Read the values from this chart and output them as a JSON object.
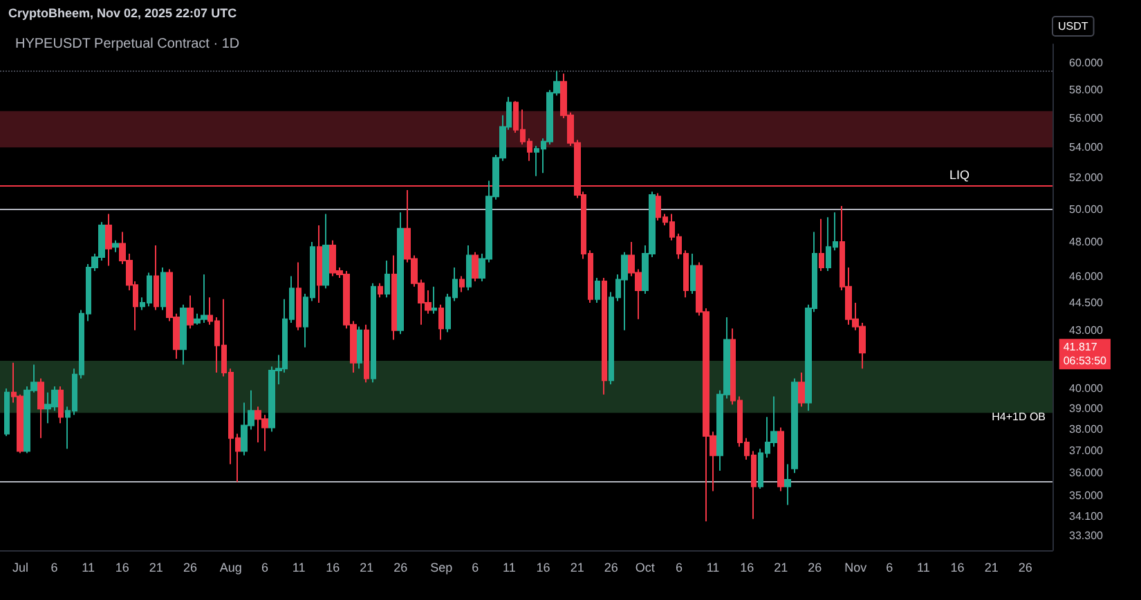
{
  "chart_data": {
    "type": "candlestick",
    "title": "HYPEUSDT Perpetual Contract · 1D",
    "ylabel": "USDT",
    "annotations": [
      "CryptoBheem, Nov 02, 2025 22:07 UTC",
      "41.817\n06:53:50"
    ],
    "x": [
      "2025-06-29",
      "2025-06-30",
      "2025-07-01",
      "2025-07-02",
      "2025-07-03",
      "2025-07-04",
      "2025-07-05",
      "2025-07-06",
      "2025-07-07",
      "2025-07-08",
      "2025-07-09",
      "2025-07-10",
      "2025-07-11",
      "2025-07-12",
      "2025-07-13",
      "2025-07-14",
      "2025-07-15",
      "2025-07-16",
      "2025-07-17",
      "2025-07-18",
      "2025-07-19",
      "2025-07-20",
      "2025-07-21",
      "2025-07-22",
      "2025-07-23",
      "2025-07-24",
      "2025-07-25",
      "2025-07-26",
      "2025-07-27",
      "2025-07-28",
      "2025-07-29",
      "2025-07-30",
      "2025-07-31",
      "2025-08-01",
      "2025-08-02",
      "2025-08-03",
      "2025-08-04",
      "2025-08-05",
      "2025-08-06",
      "2025-08-07",
      "2025-08-08",
      "2025-08-09",
      "2025-08-10",
      "2025-08-11",
      "2025-08-12",
      "2025-08-13",
      "2025-08-14",
      "2025-08-15",
      "2025-08-16",
      "2025-08-17",
      "2025-08-18",
      "2025-08-19",
      "2025-08-20",
      "2025-08-21",
      "2025-08-22",
      "2025-08-23",
      "2025-08-24",
      "2025-08-25",
      "2025-08-26",
      "2025-08-27",
      "2025-08-28",
      "2025-08-29",
      "2025-08-30",
      "2025-08-31",
      "2025-09-01",
      "2025-09-02",
      "2025-09-03",
      "2025-09-04",
      "2025-09-05",
      "2025-09-06",
      "2025-09-07",
      "2025-09-08",
      "2025-09-09",
      "2025-09-10",
      "2025-09-11",
      "2025-09-12",
      "2025-09-13",
      "2025-09-14",
      "2025-09-15",
      "2025-09-16",
      "2025-09-17",
      "2025-09-18",
      "2025-09-19",
      "2025-09-20",
      "2025-09-21",
      "2025-09-22",
      "2025-09-23",
      "2025-09-24",
      "2025-09-25",
      "2025-09-26",
      "2025-09-27",
      "2025-09-28",
      "2025-09-29",
      "2025-09-30",
      "2025-10-01",
      "2025-10-02",
      "2025-10-03",
      "2025-10-04",
      "2025-10-05",
      "2025-10-06",
      "2025-10-07",
      "2025-10-08",
      "2025-10-09",
      "2025-10-10",
      "2025-10-11",
      "2025-10-12",
      "2025-10-13",
      "2025-10-14",
      "2025-10-15",
      "2025-10-16",
      "2025-10-17",
      "2025-10-18",
      "2025-10-19",
      "2025-10-20",
      "2025-10-21",
      "2025-10-22",
      "2025-10-23",
      "2025-10-24",
      "2025-10-25",
      "2025-10-26",
      "2025-10-27",
      "2025-10-28",
      "2025-10-29",
      "2025-10-30",
      "2025-10-31",
      "2025-11-01",
      "2025-11-02"
    ],
    "ohlc": [
      [
        37.8,
        40.0,
        37.7,
        39.8
      ],
      [
        39.8,
        41.3,
        39.3,
        39.6
      ],
      [
        39.6,
        39.7,
        36.9,
        37.0
      ],
      [
        37.0,
        40.1,
        36.9,
        39.9
      ],
      [
        39.9,
        41.2,
        39.8,
        40.3
      ],
      [
        40.3,
        40.5,
        37.6,
        39.0
      ],
      [
        39.0,
        39.8,
        38.3,
        39.2
      ],
      [
        39.1,
        40.1,
        38.9,
        39.9
      ],
      [
        39.9,
        40.1,
        38.3,
        38.6
      ],
      [
        38.6,
        39.1,
        37.1,
        38.9
      ],
      [
        38.9,
        41.0,
        38.7,
        40.7
      ],
      [
        40.7,
        44.1,
        40.5,
        43.9
      ],
      [
        43.9,
        46.7,
        43.5,
        46.5
      ],
      [
        46.5,
        47.3,
        46.3,
        47.1
      ],
      [
        47.1,
        49.2,
        46.9,
        49.0
      ],
      [
        49.0,
        49.7,
        46.6,
        47.6
      ],
      [
        47.7,
        48.1,
        47.4,
        47.9
      ],
      [
        47.9,
        48.6,
        46.7,
        46.9
      ],
      [
        46.9,
        47.3,
        45.2,
        45.5
      ],
      [
        45.5,
        45.7,
        43.0,
        44.3
      ],
      [
        44.3,
        44.8,
        44.1,
        44.5
      ],
      [
        44.5,
        46.2,
        44.3,
        46.0
      ],
      [
        46.0,
        47.8,
        44.1,
        44.3
      ],
      [
        44.3,
        46.5,
        44.1,
        46.2
      ],
      [
        46.2,
        46.4,
        43.5,
        43.7
      ],
      [
        43.7,
        43.9,
        41.5,
        42.0
      ],
      [
        42.0,
        44.4,
        41.2,
        44.2
      ],
      [
        44.2,
        44.9,
        43.1,
        43.3
      ],
      [
        43.4,
        43.9,
        43.3,
        43.6
      ],
      [
        43.6,
        46.1,
        43.4,
        43.8
      ],
      [
        43.8,
        44.8,
        43.3,
        43.5
      ],
      [
        43.5,
        43.7,
        40.8,
        42.2
      ],
      [
        42.2,
        44.7,
        40.6,
        40.8
      ],
      [
        40.8,
        41.0,
        36.4,
        37.6
      ],
      [
        37.6,
        37.8,
        35.6,
        37.0
      ],
      [
        37.0,
        39.3,
        36.8,
        38.2
      ],
      [
        38.2,
        39.9,
        38.0,
        38.9
      ],
      [
        38.9,
        39.1,
        37.4,
        38.5
      ],
      [
        38.5,
        38.7,
        37.0,
        38.1
      ],
      [
        38.1,
        41.1,
        37.9,
        40.9
      ],
      [
        40.9,
        41.7,
        40.2,
        41.0
      ],
      [
        41.0,
        44.7,
        40.8,
        43.6
      ],
      [
        43.6,
        46.0,
        43.4,
        45.3
      ],
      [
        45.3,
        46.8,
        43.0,
        43.2
      ],
      [
        43.2,
        45.0,
        42.1,
        44.8
      ],
      [
        44.8,
        48.0,
        44.6,
        47.7
      ],
      [
        47.7,
        49.0,
        44.5,
        45.5
      ],
      [
        45.5,
        49.7,
        45.3,
        47.8
      ],
      [
        47.8,
        48.1,
        46.0,
        46.2
      ],
      [
        46.3,
        46.5,
        45.9,
        46.1
      ],
      [
        46.1,
        46.3,
        43.1,
        43.3
      ],
      [
        43.3,
        43.5,
        40.8,
        41.3
      ],
      [
        41.3,
        43.2,
        41.0,
        43.0
      ],
      [
        43.0,
        43.3,
        40.3,
        40.5
      ],
      [
        40.5,
        45.6,
        40.3,
        45.4
      ],
      [
        45.4,
        45.6,
        44.8,
        45.0
      ],
      [
        45.0,
        46.9,
        44.8,
        46.1
      ],
      [
        46.1,
        47.2,
        42.5,
        43.0
      ],
      [
        43.0,
        49.8,
        42.8,
        48.8
      ],
      [
        48.8,
        51.2,
        46.8,
        47.0
      ],
      [
        47.0,
        47.2,
        45.4,
        45.6
      ],
      [
        45.6,
        45.8,
        43.3,
        44.5
      ],
      [
        44.5,
        45.2,
        43.9,
        44.1
      ],
      [
        44.1,
        45.4,
        43.9,
        44.2
      ],
      [
        44.2,
        44.4,
        42.5,
        43.1
      ],
      [
        43.1,
        45.0,
        42.9,
        44.8
      ],
      [
        44.8,
        46.5,
        44.6,
        45.8
      ],
      [
        45.8,
        46.0,
        45.1,
        45.4
      ],
      [
        45.4,
        47.8,
        45.2,
        47.2
      ],
      [
        47.2,
        47.4,
        45.7,
        45.9
      ],
      [
        45.9,
        47.3,
        45.7,
        47.0
      ],
      [
        47.0,
        51.8,
        46.8,
        50.8
      ],
      [
        50.8,
        53.5,
        50.6,
        53.3
      ],
      [
        53.3,
        56.2,
        53.1,
        55.4
      ],
      [
        55.4,
        57.5,
        55.2,
        57.1
      ],
      [
        57.1,
        57.2,
        55.0,
        55.2
      ],
      [
        55.2,
        56.6,
        54.2,
        54.4
      ],
      [
        54.4,
        54.6,
        53.1,
        53.7
      ],
      [
        53.7,
        54.1,
        52.1,
        53.9
      ],
      [
        53.9,
        54.6,
        52.3,
        54.4
      ],
      [
        54.4,
        58.0,
        54.2,
        57.8
      ],
      [
        57.8,
        59.4,
        57.6,
        58.6
      ],
      [
        58.6,
        59.2,
        56.0,
        56.2
      ],
      [
        56.2,
        56.4,
        54.1,
        54.3
      ],
      [
        54.3,
        54.5,
        50.7,
        50.9
      ],
      [
        50.9,
        51.1,
        47.0,
        47.3
      ],
      [
        47.3,
        47.5,
        44.5,
        44.7
      ],
      [
        44.7,
        45.9,
        44.5,
        45.7
      ],
      [
        45.7,
        45.9,
        39.7,
        40.4
      ],
      [
        40.4,
        45.1,
        40.2,
        44.8
      ],
      [
        44.8,
        46.1,
        44.6,
        45.8
      ],
      [
        45.8,
        47.4,
        43.0,
        47.2
      ],
      [
        47.2,
        48.0,
        46.0,
        46.2
      ],
      [
        46.2,
        46.4,
        43.6,
        45.2
      ],
      [
        45.2,
        47.8,
        45.0,
        47.3
      ],
      [
        47.3,
        51.1,
        47.1,
        50.9
      ],
      [
        50.8,
        51.0,
        49.3,
        49.5
      ],
      [
        49.5,
        49.7,
        49.0,
        49.2
      ],
      [
        49.2,
        49.7,
        48.1,
        48.3
      ],
      [
        48.3,
        48.5,
        47.0,
        47.3
      ],
      [
        47.3,
        47.5,
        44.8,
        45.2
      ],
      [
        45.2,
        47.3,
        45.0,
        46.6
      ],
      [
        46.6,
        46.8,
        43.8,
        44.0
      ],
      [
        44.0,
        44.2,
        33.9,
        37.7
      ],
      [
        37.7,
        37.9,
        35.2,
        36.8
      ],
      [
        36.8,
        39.9,
        36.1,
        39.7
      ],
      [
        39.7,
        43.7,
        39.5,
        42.5
      ],
      [
        42.5,
        43.1,
        39.2,
        39.4
      ],
      [
        39.4,
        39.6,
        37.2,
        37.4
      ],
      [
        37.4,
        37.6,
        36.6,
        36.8
      ],
      [
        36.8,
        37.0,
        34.0,
        35.4
      ],
      [
        35.4,
        37.1,
        35.3,
        36.9
      ],
      [
        36.9,
        38.6,
        36.7,
        37.4
      ],
      [
        37.4,
        39.6,
        37.2,
        37.9
      ],
      [
        37.9,
        38.1,
        35.2,
        35.4
      ],
      [
        35.4,
        36.4,
        34.6,
        35.7
      ],
      [
        36.2,
        40.5,
        36.0,
        40.3
      ],
      [
        40.3,
        40.8,
        39.1,
        39.3
      ],
      [
        39.3,
        44.4,
        38.9,
        44.2
      ],
      [
        44.2,
        48.6,
        44.0,
        47.3
      ],
      [
        47.3,
        49.4,
        46.3,
        46.5
      ],
      [
        46.5,
        49.5,
        46.3,
        47.7
      ],
      [
        47.7,
        49.8,
        47.5,
        48.0
      ],
      [
        48.0,
        50.2,
        45.2,
        45.4
      ],
      [
        45.4,
        46.5,
        43.3,
        43.6
      ],
      [
        43.6,
        44.5,
        43.0,
        43.2
      ],
      [
        43.2,
        43.4,
        41.0,
        41.817
      ]
    ],
    "xlim": [
      "2025-06-28",
      "2025-11-30"
    ],
    "xticks": [
      {
        "value": "2025-07-01",
        "label": "Jul"
      },
      {
        "value": "2025-07-06",
        "label": "6"
      },
      {
        "value": "2025-07-11",
        "label": "11"
      },
      {
        "value": "2025-07-16",
        "label": "16"
      },
      {
        "value": "2025-07-21",
        "label": "21"
      },
      {
        "value": "2025-07-26",
        "label": "26"
      },
      {
        "value": "2025-08-01",
        "label": "Aug"
      },
      {
        "value": "2025-08-06",
        "label": "6"
      },
      {
        "value": "2025-08-11",
        "label": "11"
      },
      {
        "value": "2025-08-16",
        "label": "16"
      },
      {
        "value": "2025-08-21",
        "label": "21"
      },
      {
        "value": "2025-08-26",
        "label": "26"
      },
      {
        "value": "2025-09-01",
        "label": "Sep"
      },
      {
        "value": "2025-09-06",
        "label": "6"
      },
      {
        "value": "2025-09-11",
        "label": "11"
      },
      {
        "value": "2025-09-16",
        "label": "16"
      },
      {
        "value": "2025-09-21",
        "label": "21"
      },
      {
        "value": "2025-09-26",
        "label": "26"
      },
      {
        "value": "2025-10-01",
        "label": "Oct"
      },
      {
        "value": "2025-10-06",
        "label": "6"
      },
      {
        "value": "2025-10-11",
        "label": "11"
      },
      {
        "value": "2025-10-16",
        "label": "16"
      },
      {
        "value": "2025-10-21",
        "label": "21"
      },
      {
        "value": "2025-10-26",
        "label": "26"
      },
      {
        "value": "2025-11-01",
        "label": "Nov"
      },
      {
        "value": "2025-11-06",
        "label": "6"
      },
      {
        "value": "2025-11-11",
        "label": "11"
      },
      {
        "value": "2025-11-16",
        "label": "16"
      },
      {
        "value": "2025-11-21",
        "label": "21"
      },
      {
        "value": "2025-11-26",
        "label": "26"
      }
    ],
    "ylim": [
      32.7,
      61.4
    ],
    "log": true,
    "yticks": [
      {
        "value": 60,
        "label": "60.000"
      },
      {
        "value": 58,
        "label": "58.000"
      },
      {
        "value": 56,
        "label": "56.000"
      },
      {
        "value": 54,
        "label": "54.000"
      },
      {
        "value": 52,
        "label": "52.000"
      },
      {
        "value": 50,
        "label": "50.000"
      },
      {
        "value": 48,
        "label": "48.000"
      },
      {
        "value": 46,
        "label": "46.000"
      },
      {
        "value": 44.5,
        "label": "44.500"
      },
      {
        "value": 43,
        "label": "43.000"
      },
      {
        "value": 40,
        "label": "40.000"
      },
      {
        "value": 39,
        "label": "39.000"
      },
      {
        "value": 38,
        "label": "38.000"
      },
      {
        "value": 37,
        "label": "37.000"
      },
      {
        "value": 36,
        "label": "36.000"
      },
      {
        "value": 35,
        "label": "35.000"
      },
      {
        "value": 34.1,
        "label": "34.100"
      },
      {
        "value": 33.3,
        "label": "33.300"
      }
    ],
    "ref_lines": [
      {
        "axis": "y",
        "value": 50,
        "color": "#b2b5be"
      },
      {
        "axis": "y",
        "value": 35.6,
        "color": "#b2b5be"
      },
      {
        "axis": "y",
        "value": 51.5,
        "label": "LIQ",
        "color": "#f23645"
      },
      {
        "axis": "y",
        "value": 59.4,
        "color": "#434651",
        "line_style": "dotted"
      }
    ],
    "bands": [
      {
        "axis": "y",
        "from": 54.0,
        "to": 56.5,
        "color": "#4a141b"
      },
      {
        "axis": "y",
        "from": 38.8,
        "to": 41.4,
        "color": "#1b3a22",
        "label": "H4+1D OB"
      }
    ],
    "grid": false
  }
}
